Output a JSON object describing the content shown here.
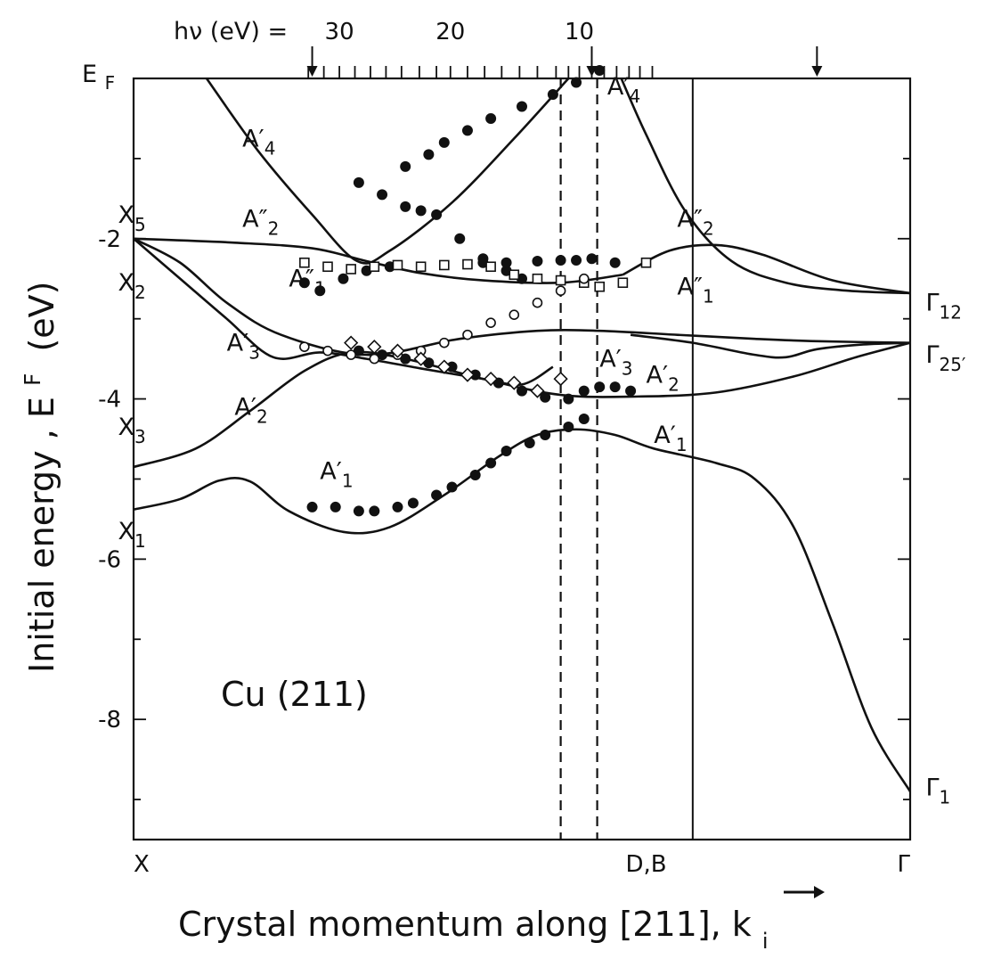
{
  "chart_data": {
    "type": "scatter",
    "title": "",
    "xlabel": "Crystal momentum along [211], k",
    "xlabel_subscript": "i",
    "ylabel": "Initial energy , E",
    "ylabel_superscript": "F",
    "ylabel_unit": "(eV)",
    "sample_label": "Cu (211)",
    "xlim": [
      0,
      1
    ],
    "ylim": [
      -9.5,
      0
    ],
    "x_tick_labels": [
      {
        "label": "X",
        "x": 0.0
      },
      {
        "label": "D,B",
        "x": 0.66
      },
      {
        "label": "Γ",
        "x": 1.0
      }
    ],
    "y_ticks": [
      -2,
      -4,
      -6,
      -8
    ],
    "y_tick_labels": [
      "-2",
      "-4",
      "-6",
      "-8"
    ],
    "y_top_label": "E",
    "y_top_label_sub": "F",
    "top_axis": {
      "label": "hν (eV) =",
      "tick_labels": [
        {
          "label": "30",
          "x": 0.265
        },
        {
          "label": "20",
          "x": 0.408
        },
        {
          "label": "10",
          "x": 0.574
        }
      ],
      "minor_ticks_x": [
        0.225,
        0.245,
        0.265,
        0.285,
        0.305,
        0.325,
        0.345,
        0.368,
        0.39,
        0.408,
        0.43,
        0.452,
        0.474,
        0.497,
        0.52,
        0.544,
        0.56,
        0.574,
        0.59,
        0.606,
        0.622,
        0.638,
        0.652,
        0.668
      ],
      "arrows_x": [
        0.23,
        0.59,
        0.88
      ]
    },
    "reference_lines": [
      {
        "style": "dashed",
        "x": 0.55
      },
      {
        "style": "dashed",
        "x": 0.597
      },
      {
        "style": "solid",
        "x": 0.72
      }
    ],
    "series": [
      {
        "kind": "band",
        "points": [
          [
            0.094,
            0.0
          ],
          [
            0.16,
            -0.9
          ],
          [
            0.23,
            -1.7
          ],
          [
            0.288,
            -2.28
          ],
          [
            0.33,
            -2.15
          ],
          [
            0.41,
            -1.55
          ],
          [
            0.49,
            -0.75
          ],
          [
            0.56,
            0.0
          ]
        ]
      },
      {
        "kind": "band",
        "points": [
          [
            0.628,
            0.0
          ],
          [
            0.66,
            -0.7
          ],
          [
            0.71,
            -1.65
          ],
          [
            0.77,
            -2.28
          ],
          [
            0.84,
            -2.55
          ],
          [
            0.92,
            -2.65
          ],
          [
            1.0,
            -2.68
          ]
        ]
      },
      {
        "kind": "band",
        "points": [
          [
            0.0,
            -2.0
          ],
          [
            0.13,
            -2.05
          ],
          [
            0.23,
            -2.12
          ],
          [
            0.3,
            -2.28
          ],
          [
            0.37,
            -2.43
          ],
          [
            0.45,
            -2.52
          ],
          [
            0.55,
            -2.55
          ],
          [
            0.63,
            -2.45
          ]
        ]
      },
      {
        "kind": "band",
        "points": [
          [
            0.63,
            -2.45
          ],
          [
            0.69,
            -2.15
          ],
          [
            0.75,
            -2.08
          ],
          [
            0.81,
            -2.2
          ],
          [
            0.9,
            -2.52
          ],
          [
            1.0,
            -2.68
          ]
        ]
      },
      {
        "kind": "band",
        "points": [
          [
            0.0,
            -2.0
          ],
          [
            0.06,
            -2.5
          ],
          [
            0.12,
            -3.0
          ],
          [
            0.18,
            -3.48
          ],
          [
            0.24,
            -3.42
          ],
          [
            0.3,
            -3.5
          ],
          [
            0.37,
            -3.62
          ],
          [
            0.45,
            -3.75
          ],
          [
            0.5,
            -3.82
          ],
          [
            0.54,
            -3.6
          ]
        ]
      },
      {
        "kind": "band",
        "points": [
          [
            0.0,
            -2.0
          ],
          [
            0.06,
            -2.3
          ],
          [
            0.12,
            -2.8
          ],
          [
            0.19,
            -3.2
          ],
          [
            0.3,
            -3.45
          ],
          [
            0.42,
            -3.25
          ],
          [
            0.52,
            -3.15
          ],
          [
            0.6,
            -3.15
          ],
          [
            0.7,
            -3.2
          ],
          [
            0.8,
            -3.25
          ],
          [
            0.88,
            -3.28
          ],
          [
            1.0,
            -3.3
          ]
        ]
      },
      {
        "kind": "band",
        "points": [
          [
            0.64,
            -3.2
          ],
          [
            0.72,
            -3.3
          ],
          [
            0.8,
            -3.45
          ],
          [
            0.84,
            -3.48
          ],
          [
            0.88,
            -3.38
          ],
          [
            0.94,
            -3.32
          ],
          [
            1.0,
            -3.3
          ]
        ]
      },
      {
        "kind": "band",
        "points": [
          [
            0.0,
            -4.85
          ],
          [
            0.08,
            -4.62
          ],
          [
            0.15,
            -4.15
          ],
          [
            0.22,
            -3.65
          ],
          [
            0.28,
            -3.42
          ],
          [
            0.35,
            -3.5
          ],
          [
            0.45,
            -3.75
          ],
          [
            0.55,
            -3.95
          ],
          [
            0.65,
            -3.97
          ],
          [
            0.75,
            -3.92
          ],
          [
            0.85,
            -3.72
          ],
          [
            0.93,
            -3.48
          ],
          [
            1.0,
            -3.3
          ]
        ]
      },
      {
        "kind": "band",
        "points": [
          [
            0.0,
            -5.38
          ],
          [
            0.06,
            -5.25
          ],
          [
            0.11,
            -5.02
          ],
          [
            0.15,
            -5.03
          ],
          [
            0.2,
            -5.4
          ],
          [
            0.27,
            -5.66
          ],
          [
            0.33,
            -5.6
          ],
          [
            0.4,
            -5.2
          ],
          [
            0.47,
            -4.72
          ],
          [
            0.52,
            -4.45
          ],
          [
            0.57,
            -4.38
          ],
          [
            0.62,
            -4.45
          ],
          [
            0.67,
            -4.62
          ],
          [
            0.75,
            -4.8
          ],
          [
            0.8,
            -5.0
          ],
          [
            0.85,
            -5.6
          ],
          [
            0.9,
            -6.8
          ],
          [
            0.95,
            -8.1
          ],
          [
            1.0,
            -8.9
          ]
        ]
      },
      {
        "kind": "filled-circle",
        "points": [
          [
            0.35,
            -1.1
          ],
          [
            0.38,
            -0.95
          ],
          [
            0.4,
            -0.8
          ],
          [
            0.43,
            -0.65
          ],
          [
            0.46,
            -0.5
          ],
          [
            0.5,
            -0.35
          ],
          [
            0.54,
            -0.2
          ],
          [
            0.57,
            -0.05
          ],
          [
            0.6,
            0.1
          ]
        ]
      },
      {
        "kind": "filled-circle",
        "points": [
          [
            0.29,
            -1.3
          ],
          [
            0.32,
            -1.45
          ],
          [
            0.35,
            -1.6
          ],
          [
            0.37,
            -1.65
          ],
          [
            0.39,
            -1.7
          ],
          [
            0.42,
            -2.0
          ],
          [
            0.45,
            -2.25
          ],
          [
            0.48,
            -2.4
          ],
          [
            0.5,
            -2.5
          ]
        ]
      },
      {
        "kind": "filled-circle",
        "points": [
          [
            0.22,
            -2.55
          ],
          [
            0.24,
            -2.65
          ],
          [
            0.27,
            -2.5
          ],
          [
            0.3,
            -2.4
          ],
          [
            0.33,
            -2.35
          ],
          [
            0.45,
            -2.3
          ],
          [
            0.48,
            -2.3
          ],
          [
            0.52,
            -2.28
          ],
          [
            0.55,
            -2.27
          ],
          [
            0.57,
            -2.27
          ],
          [
            0.59,
            -2.25
          ],
          [
            0.62,
            -2.3
          ]
        ]
      },
      {
        "kind": "filled-circle",
        "points": [
          [
            0.29,
            -3.4
          ],
          [
            0.32,
            -3.45
          ],
          [
            0.35,
            -3.5
          ],
          [
            0.38,
            -3.55
          ],
          [
            0.41,
            -3.6
          ],
          [
            0.44,
            -3.7
          ],
          [
            0.47,
            -3.8
          ],
          [
            0.5,
            -3.9
          ],
          [
            0.53,
            -3.98
          ],
          [
            0.56,
            -4.0
          ],
          [
            0.58,
            -3.9
          ],
          [
            0.6,
            -3.85
          ],
          [
            0.62,
            -3.85
          ],
          [
            0.64,
            -3.9
          ]
        ]
      },
      {
        "kind": "filled-circle",
        "points": [
          [
            0.23,
            -5.35
          ],
          [
            0.26,
            -5.35
          ],
          [
            0.29,
            -5.4
          ],
          [
            0.31,
            -5.4
          ],
          [
            0.34,
            -5.35
          ],
          [
            0.36,
            -5.3
          ],
          [
            0.39,
            -5.2
          ],
          [
            0.41,
            -5.1
          ],
          [
            0.44,
            -4.95
          ],
          [
            0.46,
            -4.8
          ],
          [
            0.48,
            -4.65
          ],
          [
            0.51,
            -4.55
          ],
          [
            0.53,
            -4.45
          ],
          [
            0.56,
            -4.35
          ],
          [
            0.58,
            -4.25
          ]
        ]
      },
      {
        "kind": "open-square",
        "points": [
          [
            0.22,
            -2.3
          ],
          [
            0.25,
            -2.35
          ],
          [
            0.28,
            -2.38
          ],
          [
            0.31,
            -2.35
          ],
          [
            0.34,
            -2.33
          ],
          [
            0.37,
            -2.35
          ],
          [
            0.4,
            -2.33
          ],
          [
            0.43,
            -2.32
          ],
          [
            0.46,
            -2.35
          ],
          [
            0.49,
            -2.45
          ],
          [
            0.52,
            -2.5
          ],
          [
            0.55,
            -2.52
          ],
          [
            0.58,
            -2.55
          ],
          [
            0.6,
            -2.6
          ],
          [
            0.63,
            -2.55
          ],
          [
            0.66,
            -2.3
          ]
        ]
      },
      {
        "kind": "open-circle",
        "points": [
          [
            0.22,
            -3.35
          ],
          [
            0.25,
            -3.4
          ],
          [
            0.28,
            -3.45
          ],
          [
            0.31,
            -3.5
          ],
          [
            0.34,
            -3.45
          ],
          [
            0.37,
            -3.4
          ],
          [
            0.4,
            -3.3
          ],
          [
            0.43,
            -3.2
          ],
          [
            0.46,
            -3.05
          ],
          [
            0.49,
            -2.95
          ],
          [
            0.52,
            -2.8
          ],
          [
            0.55,
            -2.65
          ],
          [
            0.58,
            -2.5
          ]
        ]
      },
      {
        "kind": "open-diamond",
        "points": [
          [
            0.28,
            -3.3
          ],
          [
            0.31,
            -3.35
          ],
          [
            0.34,
            -3.4
          ],
          [
            0.37,
            -3.5
          ],
          [
            0.4,
            -3.6
          ],
          [
            0.43,
            -3.7
          ],
          [
            0.46,
            -3.75
          ],
          [
            0.49,
            -3.8
          ],
          [
            0.52,
            -3.9
          ],
          [
            0.55,
            -3.75
          ]
        ]
      }
    ],
    "band_labels": [
      {
        "text": "X",
        "sub": "5",
        "x": -0.02,
        "y": -1.8
      },
      {
        "text": "X",
        "sub": "2",
        "x": -0.02,
        "y": -2.65
      },
      {
        "text": "X",
        "sub": "3",
        "x": -0.02,
        "y": -4.45
      },
      {
        "text": "X",
        "sub": "1",
        "x": -0.02,
        "y": -5.75
      },
      {
        "text": "A",
        "prime": "′",
        "sub": "4",
        "x": 0.14,
        "y": -0.85
      },
      {
        "text": "A",
        "prime": "″",
        "sub": "2",
        "x": 0.14,
        "y": -1.85
      },
      {
        "text": "A",
        "prime": "″",
        "sub": "1",
        "x": 0.2,
        "y": -2.6
      },
      {
        "text": "A",
        "prime": "′",
        "sub": "3",
        "x": 0.12,
        "y": -3.4
      },
      {
        "text": "A",
        "prime": "′",
        "sub": "2",
        "x": 0.13,
        "y": -4.2
      },
      {
        "text": "A",
        "prime": "′",
        "sub": "1",
        "x": 0.24,
        "y": -5.0
      },
      {
        "text": "A",
        "prime": "′",
        "sub": "4",
        "x": 0.61,
        "y": -0.2
      },
      {
        "text": "A",
        "prime": "″",
        "sub": "2",
        "x": 0.7,
        "y": -1.85
      },
      {
        "text": "A",
        "prime": "″",
        "sub": "1",
        "x": 0.7,
        "y": -2.7
      },
      {
        "text": "A",
        "prime": "′",
        "sub": "3",
        "x": 0.6,
        "y": -3.6
      },
      {
        "text": "A",
        "prime": "′",
        "sub": "2",
        "x": 0.66,
        "y": -3.8
      },
      {
        "text": "A",
        "prime": "′",
        "sub": "1",
        "x": 0.67,
        "y": -4.55
      },
      {
        "text": "Γ",
        "sub": "12",
        "x": 1.02,
        "y": -2.9
      },
      {
        "text": "Γ",
        "sub": "25′",
        "x": 1.02,
        "y": -3.55
      },
      {
        "text": "Γ",
        "sub": "1",
        "x": 1.02,
        "y": -8.95
      }
    ]
  }
}
